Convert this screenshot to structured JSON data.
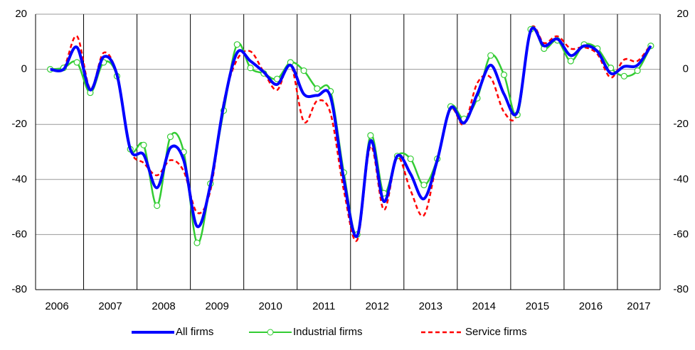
{
  "chart_data": {
    "type": "line",
    "x": [
      2006.375,
      2006.625,
      2006.875,
      2007.125,
      2007.375,
      2007.625,
      2007.875,
      2008.125,
      2008.375,
      2008.625,
      2008.875,
      2009.125,
      2009.375,
      2009.625,
      2009.875,
      2010.125,
      2010.375,
      2010.625,
      2010.875,
      2011.125,
      2011.375,
      2011.625,
      2011.875,
      2012.125,
      2012.375,
      2012.625,
      2012.875,
      2013.125,
      2013.375,
      2013.625,
      2013.875,
      2014.125,
      2014.375,
      2014.625,
      2014.875,
      2015.125,
      2015.375,
      2015.625,
      2015.875,
      2016.125,
      2016.375,
      2016.625,
      2016.875,
      2017.125,
      2017.375,
      2017.625
    ],
    "series": [
      {
        "name": "All firms",
        "color": "#0000ff",
        "style": "solid",
        "marker": false,
        "values": [
          0,
          0,
          8,
          -7.5,
          4.5,
          -2,
          -29,
          -31,
          -43,
          -28.5,
          -33,
          -57,
          -42,
          -13,
          6,
          3,
          -1,
          -5.5,
          1.5,
          -9,
          -9.5,
          -10,
          -40,
          -60.5,
          -26,
          -48,
          -31.5,
          -38,
          -47,
          -33,
          -14,
          -19.5,
          -9,
          1.5,
          -9,
          -15.5,
          14,
          8.5,
          11,
          5,
          8.5,
          6.5,
          -1.5,
          1,
          1.5,
          8.5
        ]
      },
      {
        "name": "Industrial firms",
        "color": "#33cc33",
        "style": "solid",
        "marker": true,
        "values": [
          0,
          0.5,
          2.5,
          -8.5,
          2.5,
          -2.5,
          -29,
          -27.5,
          -49.5,
          -24.5,
          -30,
          -63,
          -41.5,
          -15,
          9,
          0.5,
          -1.5,
          -3.5,
          2.5,
          -0.5,
          -7,
          -8,
          -37.5,
          -60,
          -24,
          -45,
          -31.5,
          -32.5,
          -42,
          -32.5,
          -13.5,
          -18,
          -10.5,
          5,
          -2,
          -16.5,
          14.5,
          7.5,
          10.5,
          3,
          9,
          7.5,
          0.5,
          -2.5,
          -0.5,
          8.5
        ]
      },
      {
        "name": "Service firms",
        "color": "#ff0000",
        "style": "dashed",
        "marker": false,
        "values": [
          0,
          0.5,
          12,
          -7,
          6,
          -2,
          -29,
          -34,
          -38.5,
          -33,
          -37,
          -52,
          -44,
          -12,
          3.5,
          6.5,
          -1,
          -7.5,
          2,
          -19,
          -11.5,
          -16,
          -44,
          -62,
          -28,
          -51,
          -32,
          -44,
          -53,
          -33,
          -14.5,
          -20,
          -5,
          -3,
          -15.5,
          -16,
          14.5,
          9.5,
          12,
          7.5,
          8,
          5.5,
          -3,
          3.5,
          3,
          9
        ]
      }
    ],
    "xlim": [
      2006.1,
      2017.8
    ],
    "xticks": [
      {
        "value": 2006.5,
        "label": "2006"
      },
      {
        "value": 2007.5,
        "label": "2007"
      },
      {
        "value": 2008.5,
        "label": "2008"
      },
      {
        "value": 2009.5,
        "label": "2009"
      },
      {
        "value": 2010.5,
        "label": "2010"
      },
      {
        "value": 2011.5,
        "label": "2011"
      },
      {
        "value": 2012.5,
        "label": "2012"
      },
      {
        "value": 2013.5,
        "label": "2013"
      },
      {
        "value": 2014.5,
        "label": "2014"
      },
      {
        "value": 2015.5,
        "label": "2015"
      },
      {
        "value": 2016.5,
        "label": "2016"
      },
      {
        "value": 2017.4,
        "label": "2017"
      }
    ],
    "ylim": [
      -80,
      20
    ],
    "yticks": [
      -80,
      -60,
      -40,
      -20,
      0,
      20
    ],
    "y2lim": [
      -80,
      20
    ],
    "y2ticks": [
      -80,
      -60,
      -40,
      -20,
      0,
      20
    ],
    "grid": true,
    "legend": "bottom"
  }
}
